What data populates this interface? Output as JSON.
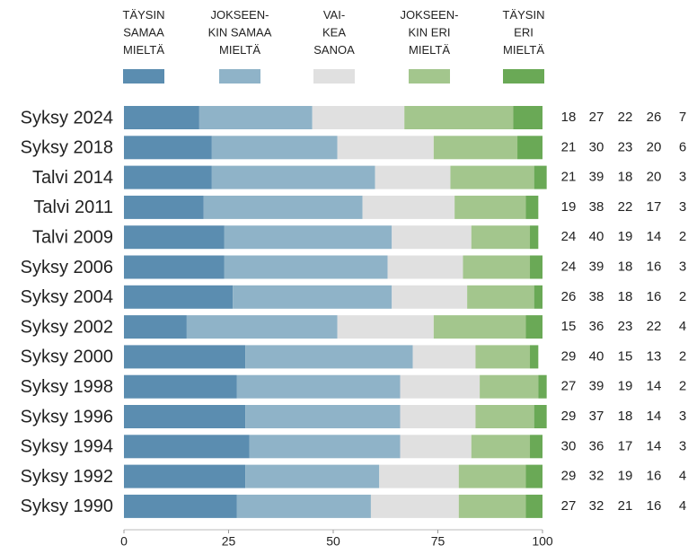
{
  "chart_data": {
    "type": "bar",
    "orientation": "horizontal",
    "stacked": true,
    "categories": [
      "Syksy 2024",
      "Syksy 2018",
      "Talvi 2014",
      "Talvi 2011",
      "Talvi 2009",
      "Syksy 2006",
      "Syksy 2004",
      "Syksy 2002",
      "Syksy 2000",
      "Syksy 1998",
      "Syksy 1996",
      "Syksy 1994",
      "Syksy 1992",
      "Syksy 1990"
    ],
    "series": [
      {
        "name": "TÄYSIN\nSAMAA\nMIELTÄ",
        "color": "#5b8db0",
        "values": [
          18,
          21,
          21,
          19,
          24,
          24,
          26,
          15,
          29,
          27,
          29,
          30,
          29,
          27
        ]
      },
      {
        "name": "JOKSEEN-\nKIN SAMAA\nMIELTÄ",
        "color": "#8fb3c8",
        "values": [
          27,
          30,
          39,
          38,
          40,
          39,
          38,
          36,
          40,
          39,
          37,
          36,
          32,
          32
        ]
      },
      {
        "name": "VAI-\nKEA\nSANOA",
        "color": "#e0e0e0",
        "values": [
          22,
          23,
          18,
          22,
          19,
          18,
          18,
          23,
          15,
          19,
          18,
          17,
          19,
          21
        ]
      },
      {
        "name": "JOKSEEN-\nKIN ERI\nMIELTÄ",
        "color": "#a3c68d",
        "values": [
          26,
          20,
          20,
          17,
          14,
          16,
          16,
          22,
          13,
          14,
          14,
          14,
          16,
          16
        ]
      },
      {
        "name": "TÄYSIN\nERI\nMIELTÄ",
        "color": "#6aa956",
        "values": [
          7,
          6,
          3,
          3,
          2,
          3,
          2,
          4,
          2,
          2,
          3,
          3,
          4,
          4
        ]
      }
    ],
    "xlim": [
      0,
      100
    ],
    "xticks": [
      0,
      25,
      50,
      75,
      100
    ],
    "grid": false
  }
}
